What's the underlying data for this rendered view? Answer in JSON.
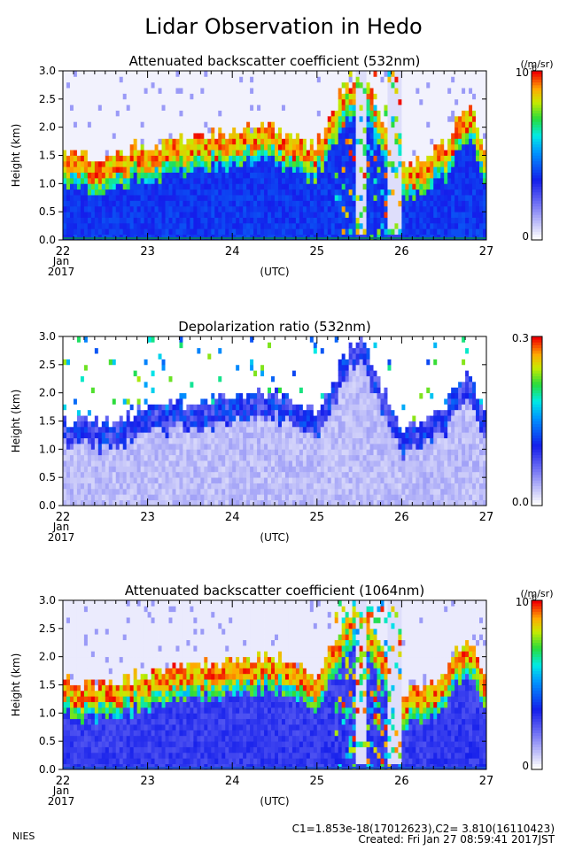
{
  "page": {
    "title": "Lidar Observation in Hedo",
    "footer_left": "NIES",
    "footer_line1": "C1=1.853e-18(17012623),C2= 3.810(16110423)",
    "footer_line2": "Created: Fri Jan 27 08:59:41 2017JST"
  },
  "chart_data": [
    {
      "type": "heatmap",
      "title": "Attenuated backscatter coefficient (532nm)",
      "ylabel": "Height (km)",
      "xlabel": "(UTC)",
      "x_month": "Jan",
      "x_year": "2017",
      "x_ticks": [
        "22",
        "23",
        "24",
        "25",
        "26",
        "27"
      ],
      "xlim": [
        22,
        27
      ],
      "y_ticks": [
        "0.0",
        "0.5",
        "1.0",
        "1.5",
        "2.0",
        "2.5",
        "3.0"
      ],
      "ylim": [
        0,
        3
      ],
      "colorbar": {
        "max_label": "10",
        "max_exp": "-6",
        "min_label": "0",
        "unit": "(/m/sr)"
      },
      "colormap": "rainbow",
      "cloud_top_km": [
        {
          "day": 22.0,
          "h": 1.45
        },
        {
          "day": 22.5,
          "h": 1.4
        },
        {
          "day": 23.0,
          "h": 1.6
        },
        {
          "day": 23.5,
          "h": 1.75
        },
        {
          "day": 24.0,
          "h": 1.85
        },
        {
          "day": 24.5,
          "h": 1.9
        },
        {
          "day": 25.0,
          "h": 1.6
        },
        {
          "day": 25.5,
          "h": 3.0
        },
        {
          "day": 26.0,
          "h": 1.2
        },
        {
          "day": 26.5,
          "h": 1.6
        },
        {
          "day": 26.8,
          "h": 2.3
        },
        {
          "day": 27.0,
          "h": 1.5
        }
      ]
    },
    {
      "type": "heatmap",
      "title": "Depolarization ratio (532nm)",
      "ylabel": "Height (km)",
      "xlabel": "(UTC)",
      "x_month": "Jan",
      "x_year": "2017",
      "x_ticks": [
        "22",
        "23",
        "24",
        "25",
        "26",
        "27"
      ],
      "xlim": [
        22,
        27
      ],
      "y_ticks": [
        "0.0",
        "0.5",
        "1.0",
        "1.5",
        "2.0",
        "2.5",
        "3.0"
      ],
      "ylim": [
        0,
        3
      ],
      "colorbar": {
        "max_label": "0.3",
        "min_label": "0.0",
        "unit": ""
      },
      "colormap": "rainbow"
    },
    {
      "type": "heatmap",
      "title": "Attenuated backscatter coefficient (1064nm)",
      "ylabel": "Height (km)",
      "xlabel": "(UTC)",
      "x_month": "Jan",
      "x_year": "2017",
      "x_ticks": [
        "22",
        "23",
        "24",
        "25",
        "26",
        "27"
      ],
      "xlim": [
        22,
        27
      ],
      "y_ticks": [
        "0.0",
        "0.5",
        "1.0",
        "1.5",
        "2.0",
        "2.5",
        "3.0"
      ],
      "ylim": [
        0,
        3
      ],
      "colorbar": {
        "max_label": "10",
        "max_exp": "-6",
        "min_label": "0",
        "unit": "(/m/sr)"
      },
      "colormap": "rainbow"
    }
  ]
}
